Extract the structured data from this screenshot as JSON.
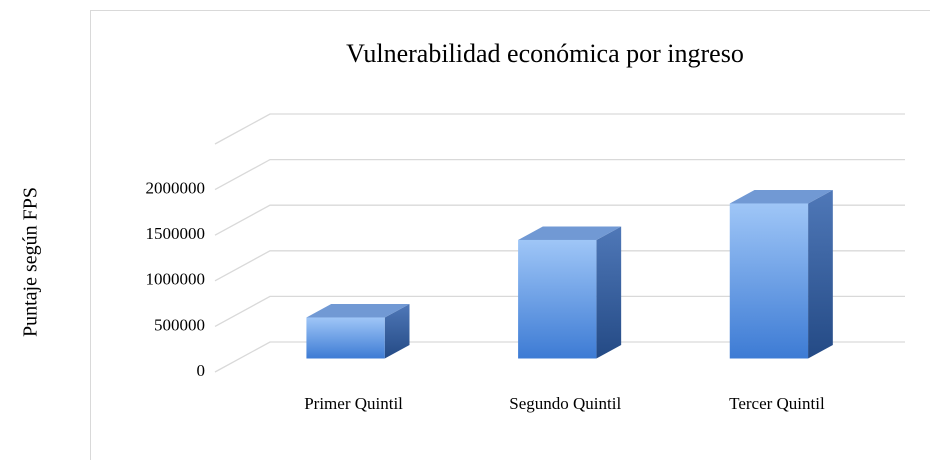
{
  "chart_data": {
    "type": "bar3d",
    "title": "Vulnerabilidad económica por ingreso",
    "y_label": "Puntaje según FPS",
    "categories": [
      "Primer Quintil",
      "Segundo Quintil",
      "Tercer Quintil"
    ],
    "values": [
      450000,
      1300000,
      1700000
    ],
    "color": "#5b9bd5",
    "ylim": [
      0,
      2500000
    ],
    "yticks": [
      0,
      500000,
      1000000,
      1500000,
      2000000
    ],
    "grid": true
  }
}
